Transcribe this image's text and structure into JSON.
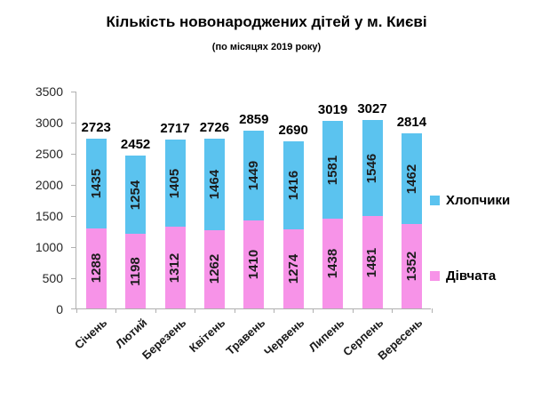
{
  "chart_data": {
    "type": "bar",
    "stacked": true,
    "title": "Кількість новонароджених дітей у м. Києві",
    "subtitle": "(по місяцях 2019 року)",
    "categories": [
      "Січень",
      "Лютий",
      "Березень",
      "Квітень",
      "Травень",
      "Червень",
      "Липень",
      "Серпень",
      "Вересень"
    ],
    "series": [
      {
        "name": "Дівчата",
        "color": "#f793e8",
        "values": [
          1288,
          1198,
          1312,
          1262,
          1410,
          1274,
          1438,
          1481,
          1352
        ]
      },
      {
        "name": "Хлопчики",
        "color": "#5bc3ef",
        "values": [
          1435,
          1254,
          1405,
          1464,
          1449,
          1416,
          1581,
          1546,
          1462
        ]
      }
    ],
    "totals": [
      2723,
      2452,
      2717,
      2726,
      2859,
      2690,
      3019,
      3027,
      2814
    ],
    "ylim": [
      0,
      3500
    ],
    "yticks": [
      0,
      500,
      1000,
      1500,
      2000,
      2500,
      3000,
      3500
    ],
    "grid": false,
    "legend_position": "right",
    "legend": [
      {
        "label": "Хлопчики",
        "color": "#5bc3ef"
      },
      {
        "label": "Дівчата",
        "color": "#f793e8"
      }
    ]
  }
}
